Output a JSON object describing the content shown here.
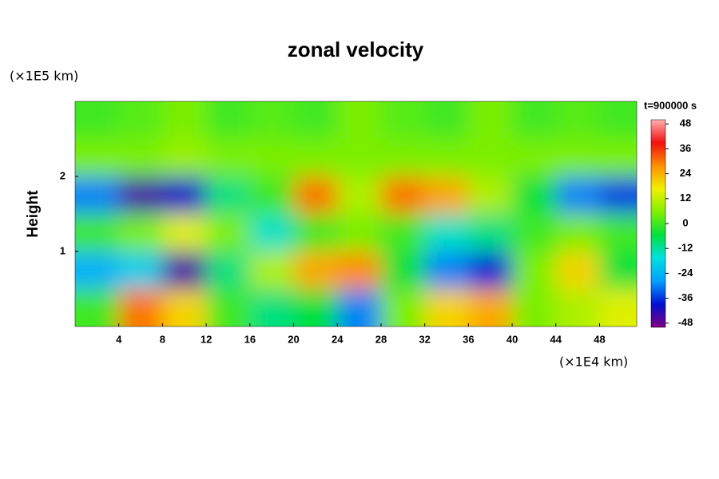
{
  "chart_data": {
    "type": "heatmap",
    "title": "zonal velocity",
    "ylabel": "Height",
    "y_unit": "(×1E5 km)",
    "x_unit": "(×1E4 km)",
    "colorbar_title": "t=900000 s",
    "xbins": [
      0,
      4,
      8,
      12,
      16,
      20,
      24,
      28,
      32,
      36,
      40,
      44,
      48,
      51.4
    ],
    "ybins": [
      0,
      0.5,
      1,
      1.5,
      2,
      2.5,
      3
    ],
    "z": [
      [
        0,
        30,
        20,
        0,
        -10,
        -5,
        -30,
        5,
        20,
        25,
        5,
        10,
        15
      ],
      [
        -25,
        -20,
        -45,
        -10,
        10,
        25,
        28,
        -5,
        -30,
        -38,
        5,
        20,
        -5
      ],
      [
        0,
        5,
        15,
        5,
        -15,
        0,
        5,
        0,
        -15,
        -10,
        0,
        5,
        0
      ],
      [
        -30,
        -45,
        -40,
        -10,
        0,
        30,
        10,
        30,
        25,
        10,
        -5,
        -30,
        -35
      ],
      [
        5,
        5,
        8,
        5,
        5,
        5,
        5,
        5,
        5,
        5,
        5,
        5,
        5
      ],
      [
        0,
        2,
        5,
        0,
        2,
        0,
        5,
        2,
        0,
        5,
        0,
        2,
        0
      ]
    ],
    "xlim": [
      0,
      51.4
    ],
    "ylim": [
      0,
      3
    ],
    "xticks": [
      4,
      8,
      12,
      16,
      20,
      24,
      28,
      32,
      36,
      40,
      44,
      48
    ],
    "yticks": [
      1,
      2
    ],
    "clim": [
      -50,
      50
    ],
    "cticks": [
      -48,
      -36,
      -24,
      -12,
      0,
      12,
      24,
      36,
      48
    ],
    "colormap": [
      "#800080",
      "#0010d0",
      "#00a0ff",
      "#00e0e0",
      "#00e040",
      "#80f000",
      "#f0f000",
      "#ff9000",
      "#f01010",
      "#ffb0b0"
    ]
  }
}
